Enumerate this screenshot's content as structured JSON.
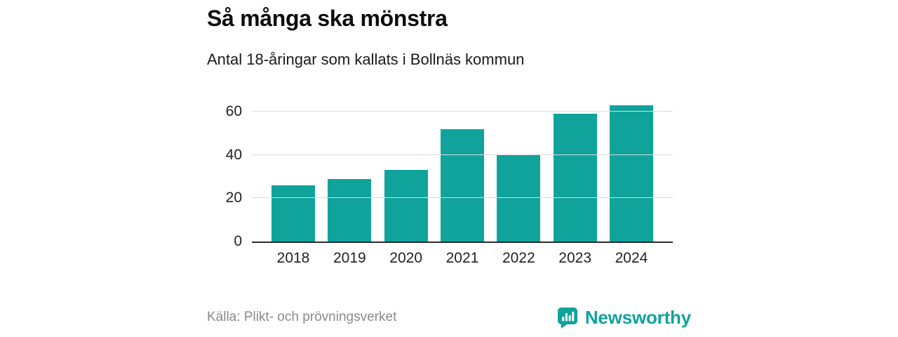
{
  "header": {
    "title": "Så många ska mönstra",
    "subtitle": "Antal 18-åringar som kallats i Bollnäs kommun"
  },
  "chart_data": {
    "type": "bar",
    "title": "Så många ska mönstra",
    "subtitle": "Antal 18-åringar som kallats i Bollnäs kommun",
    "categories": [
      "2018",
      "2019",
      "2020",
      "2021",
      "2022",
      "2023",
      "2024"
    ],
    "values": [
      26,
      29,
      33,
      52,
      40,
      59,
      63
    ],
    "xlabel": "",
    "ylabel": "",
    "ylim": [
      0,
      65
    ],
    "yticks": [
      0,
      20,
      40,
      60
    ],
    "grid": true,
    "legend": false,
    "bar_color": "#0fa39c"
  },
  "footer": {
    "source": "Källa: Plikt- och prövningsverket",
    "brand": "Newsworthy",
    "brand_color": "#0fa39c"
  }
}
